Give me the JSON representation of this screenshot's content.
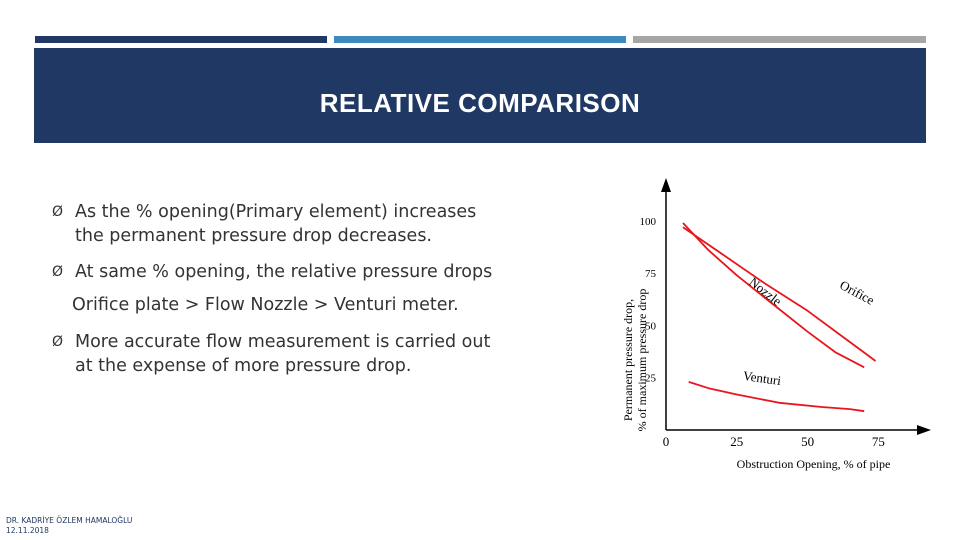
{
  "slide": {
    "title": "RELATIVE COMPARISON",
    "colors": {
      "navy": "#1f3864",
      "blue": "#3d8bbd",
      "gray": "#a6a6a6",
      "curve": "#e8151b"
    }
  },
  "bullets": [
    {
      "icon": "arrow-bullet-icon",
      "lines": [
        "As the % opening(Primary element) increases",
        "the permanent pressure drop decreases."
      ]
    },
    {
      "icon": "arrow-bullet-icon",
      "lines": [
        "At same % opening, the relative pressure drops"
      ]
    },
    {
      "icon": "arrow-bullet-icon",
      "lines": [
        "More accurate flow measurement is carried out",
        "at the expense of more pressure drop."
      ]
    }
  ],
  "bullet_marker": "Ø",
  "comparison_line": "Orifice plate > Flow Nozzle > Venturi meter.",
  "footer": {
    "author": "DR. KADRİYE ÖZLEM HAMALOĞLU",
    "date": "12.11.2018"
  },
  "chart_data": {
    "type": "line",
    "xlabel": "Obstruction Opening, % of pipe",
    "ylabel": [
      "Permanent pressure drop,",
      "% of maximum pressure drop"
    ],
    "x_ticks": [
      0,
      25,
      50,
      75
    ],
    "y_ticks": [
      25,
      50,
      75,
      100
    ],
    "xlim": [
      0,
      83
    ],
    "ylim": [
      0,
      110
    ],
    "series": [
      {
        "name": "Orifice",
        "points": [
          [
            6,
            97
          ],
          [
            20,
            84
          ],
          [
            35,
            70
          ],
          [
            50,
            57
          ],
          [
            62,
            45
          ],
          [
            69,
            38
          ],
          [
            74,
            33
          ]
        ]
      },
      {
        "name": "Nozzle",
        "points": [
          [
            6,
            99
          ],
          [
            15,
            86
          ],
          [
            25,
            74
          ],
          [
            37,
            61
          ],
          [
            50,
            47
          ],
          [
            60,
            37
          ],
          [
            70,
            30
          ]
        ]
      },
      {
        "name": "Venturi",
        "points": [
          [
            8,
            23
          ],
          [
            15,
            20
          ],
          [
            25,
            17
          ],
          [
            40,
            13
          ],
          [
            55,
            11
          ],
          [
            65,
            10
          ],
          [
            70,
            9
          ]
        ]
      }
    ],
    "color": "#e8151b"
  }
}
